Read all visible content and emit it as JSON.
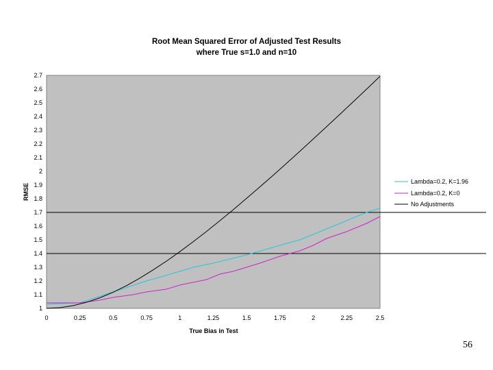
{
  "page_number": "56",
  "chart_data": {
    "type": "line",
    "title": "Root Mean Squared Error of Adjusted Test Results",
    "subtitle": "where True s=1.0 and n=10",
    "xlabel": "True Bias in Test",
    "ylabel": "RMSE",
    "xlim": [
      0,
      2.5
    ],
    "ylim": [
      1,
      2.7
    ],
    "x_ticks": [
      "0",
      "0.25",
      "0.5",
      "0.75",
      "1",
      "1.25",
      "1.5",
      "1.75",
      "2",
      "2.25",
      "2.5"
    ],
    "y_ticks": [
      "1",
      "1.1",
      "1.2",
      "1.3",
      "1.4",
      "1.5",
      "1.6",
      "1.7",
      "1.8",
      "1.9",
      "2",
      "2.1",
      "2.2",
      "2.3",
      "2.4",
      "2.5",
      "2.6",
      "2.7"
    ],
    "grid": false,
    "plot_background": "#c0c0c0",
    "legend_position": "right",
    "reference_lines": [
      1.4,
      1.7
    ],
    "series": [
      {
        "name": "Lambda=0.2, K=1.96",
        "color": "#22c8d8",
        "x": [
          0,
          0.25,
          0.5,
          0.75,
          1,
          1.1,
          1.25,
          1.5,
          1.75,
          1.9,
          2,
          2.1,
          2.25,
          2.4,
          2.5
        ],
        "y": [
          1.03,
          1.04,
          1.12,
          1.2,
          1.27,
          1.3,
          1.33,
          1.39,
          1.46,
          1.5,
          1.54,
          1.58,
          1.64,
          1.7,
          1.73
        ]
      },
      {
        "name": "Lambda=0.2, K=0",
        "color": "#cc22cc",
        "x": [
          0,
          0.25,
          0.4,
          0.5,
          0.65,
          0.75,
          0.9,
          1,
          1.2,
          1.3,
          1.4,
          1.5,
          1.6,
          1.75,
          1.9,
          2,
          2.1,
          2.25,
          2.4,
          2.5
        ],
        "y": [
          1.04,
          1.04,
          1.06,
          1.08,
          1.1,
          1.12,
          1.14,
          1.17,
          1.21,
          1.25,
          1.27,
          1.3,
          1.33,
          1.38,
          1.42,
          1.46,
          1.51,
          1.56,
          1.62,
          1.67
        ]
      },
      {
        "name": "No Adjustments",
        "color": "#000000",
        "x": [
          0,
          0.1,
          0.2,
          0.3,
          0.4,
          0.5,
          0.6,
          0.7,
          0.8,
          0.9,
          1,
          1.1,
          1.2,
          1.3,
          1.4,
          1.5,
          1.6,
          1.7,
          1.8,
          1.9,
          2,
          2.1,
          2.2,
          2.3,
          2.4,
          2.5
        ],
        "y": [
          1,
          1.005,
          1.02,
          1.044,
          1.077,
          1.118,
          1.166,
          1.221,
          1.281,
          1.345,
          1.414,
          1.487,
          1.562,
          1.64,
          1.72,
          1.803,
          1.887,
          1.972,
          2.059,
          2.147,
          2.236,
          2.326,
          2.417,
          2.508,
          2.6,
          2.693
        ]
      }
    ]
  }
}
